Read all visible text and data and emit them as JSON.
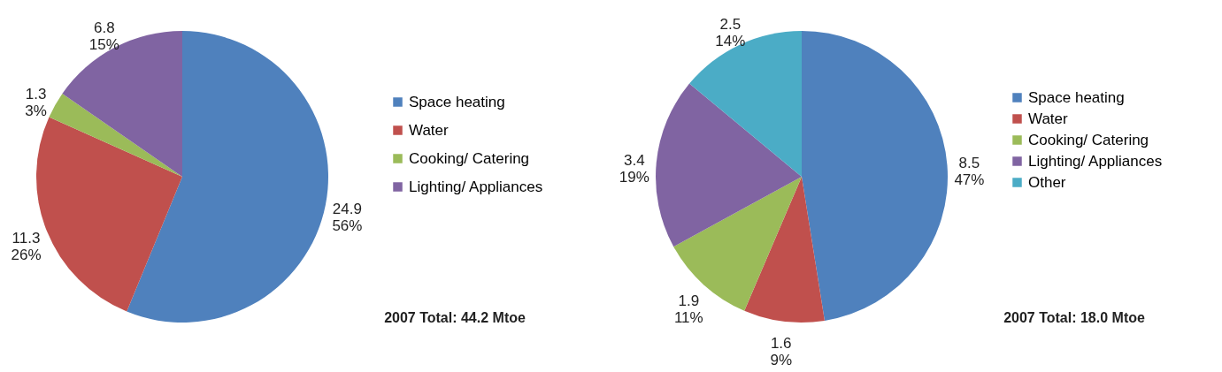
{
  "chart_data": [
    {
      "type": "pie",
      "categories": [
        "Space heating",
        "Water",
        "Cooking/ Catering",
        "Lighting/ Appliances"
      ],
      "values": [
        24.9,
        11.3,
        1.3,
        6.8
      ],
      "colors": [
        "#4f81bd",
        "#c0504d",
        "#9bbb59",
        "#8064a2"
      ],
      "value_labels": [
        "24.9\n56%",
        "11.3\n26%",
        "1.3\n3%",
        "6.8\n15%"
      ],
      "legend": "right",
      "annotations": [
        "2007 Total: 44.2 Mtoe"
      ]
    },
    {
      "type": "pie",
      "categories": [
        "Space heating",
        "Water",
        "Cooking/ Catering",
        "Lighting/ Appliances",
        "Other"
      ],
      "values": [
        8.5,
        1.6,
        1.9,
        3.4,
        2.5
      ],
      "colors": [
        "#4f81bd",
        "#c0504d",
        "#9bbb59",
        "#8064a2",
        "#4bacc6"
      ],
      "value_labels": [
        "8.5\n47%",
        "1.6\n9%",
        "1.9\n11%",
        "3.4\n19%",
        "2.5\n14%"
      ],
      "legend": "right",
      "annotations": [
        "2007 Total: 18.0 Mtoe"
      ]
    }
  ]
}
